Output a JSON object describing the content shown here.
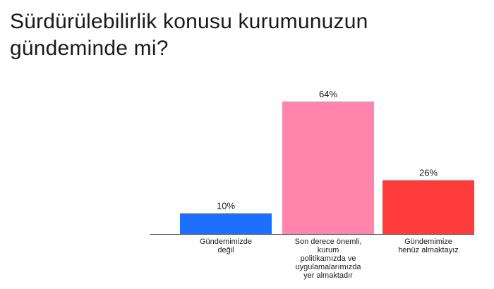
{
  "title": "Sürdürülebilirlik konusu kurumunuzun gündeminde mi?",
  "chart_data": {
    "type": "bar",
    "categories": [
      "Gündemimizde değil",
      "Son derece önemli, kurum politikamızda ve uygulamalarımızda yer almaktadır",
      "Gündemimize henüz almaktayız"
    ],
    "category_lines": [
      [
        "Gündemimizde",
        "değil"
      ],
      [
        "Son derece önemli,",
        "kurum",
        "politikamızda ve",
        "uygulamalarımızda",
        "yer almaktadır"
      ],
      [
        "Gündemimize",
        "henüz almaktayız"
      ]
    ],
    "values": [
      10,
      64,
      26
    ],
    "value_labels": [
      "10%",
      "64%",
      "26%"
    ],
    "colors": [
      "#1f6fff",
      "#ff85ad",
      "#ff3b3b"
    ],
    "ylim": [
      0,
      64
    ],
    "grid": false,
    "legend": "none"
  }
}
